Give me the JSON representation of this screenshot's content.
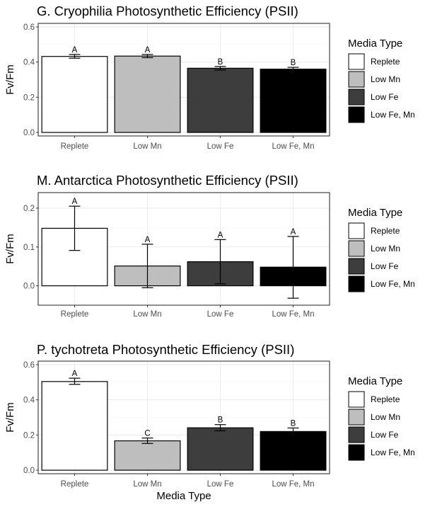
{
  "chart_data": [
    {
      "type": "bar",
      "title": "G. Cryophilia Photosynthetic Efficiency (PSII)",
      "xlabel": "",
      "ylabel": "Fv/Fm",
      "ylim": [
        -0.02,
        0.62
      ],
      "yticks": [
        0.0,
        0.2,
        0.4,
        0.6
      ],
      "ytick_labels": [
        "0.0",
        "0.2",
        "0.4",
        "0.6"
      ],
      "grid": true,
      "categories": [
        "Replete",
        "Low Mn",
        "Low Fe",
        "Low Fe, Mn"
      ],
      "values": [
        0.432,
        0.434,
        0.365,
        0.36
      ],
      "error_low": [
        0.422,
        0.425,
        0.355,
        0.351
      ],
      "error_high": [
        0.443,
        0.443,
        0.375,
        0.37
      ],
      "labels": [
        "A",
        "A",
        "B",
        "B"
      ],
      "legend": {
        "title": "Media Type",
        "position": "right",
        "entries": [
          "Replete",
          "Low Mn",
          "Low Fe",
          "Low Fe, Mn"
        ]
      }
    },
    {
      "type": "bar",
      "title": "M. Antarctica Photosynthetic Efficiency (PSII)",
      "xlabel": "",
      "ylabel": "Fv/Fm",
      "ylim": [
        -0.05,
        0.24
      ],
      "yticks": [
        0.0,
        0.1,
        0.2
      ],
      "ytick_labels": [
        "0.0",
        "0.1",
        "0.2"
      ],
      "grid": true,
      "categories": [
        "Replete",
        "Low Mn",
        "Low Fe",
        "Low Fe, Mn"
      ],
      "values": [
        0.148,
        0.051,
        0.062,
        0.048
      ],
      "error_low": [
        0.091,
        -0.005,
        0.005,
        -0.032
      ],
      "error_high": [
        0.205,
        0.107,
        0.119,
        0.127
      ],
      "labels": [
        "A",
        "A",
        "A",
        "A"
      ],
      "legend": {
        "title": "Media Type",
        "position": "right",
        "entries": [
          "Replete",
          "Low Mn",
          "Low Fe",
          "Low Fe, Mn"
        ]
      }
    },
    {
      "type": "bar",
      "title": "P. tychotreta Photosynthetic Efficiency (PSII)",
      "xlabel": "Media Type",
      "ylabel": "Fv/Fm",
      "ylim": [
        -0.02,
        0.62
      ],
      "yticks": [
        0.0,
        0.2,
        0.4,
        0.6
      ],
      "ytick_labels": [
        "0.0",
        "0.2",
        "0.4",
        "0.6"
      ],
      "grid": true,
      "categories": [
        "Replete",
        "Low Mn",
        "Low Fe",
        "Low Fe, Mn"
      ],
      "values": [
        0.504,
        0.167,
        0.241,
        0.22
      ],
      "error_low": [
        0.488,
        0.152,
        0.224,
        0.205
      ],
      "error_high": [
        0.523,
        0.183,
        0.259,
        0.24
      ],
      "labels": [
        "A",
        "C",
        "B",
        "B"
      ],
      "legend": {
        "title": "Media Type",
        "position": "right",
        "entries": [
          "Replete",
          "Low Mn",
          "Low Fe",
          "Low Fe, Mn"
        ]
      }
    }
  ],
  "colors": {
    "fills": [
      "#ffffff",
      "#bebebe",
      "#3d3d3d",
      "#000000"
    ],
    "grid_major": "#ebebeb",
    "grid_minor": "#f5f5f5",
    "panel_border": "#333333",
    "tick_text": "#4d4d4d"
  }
}
